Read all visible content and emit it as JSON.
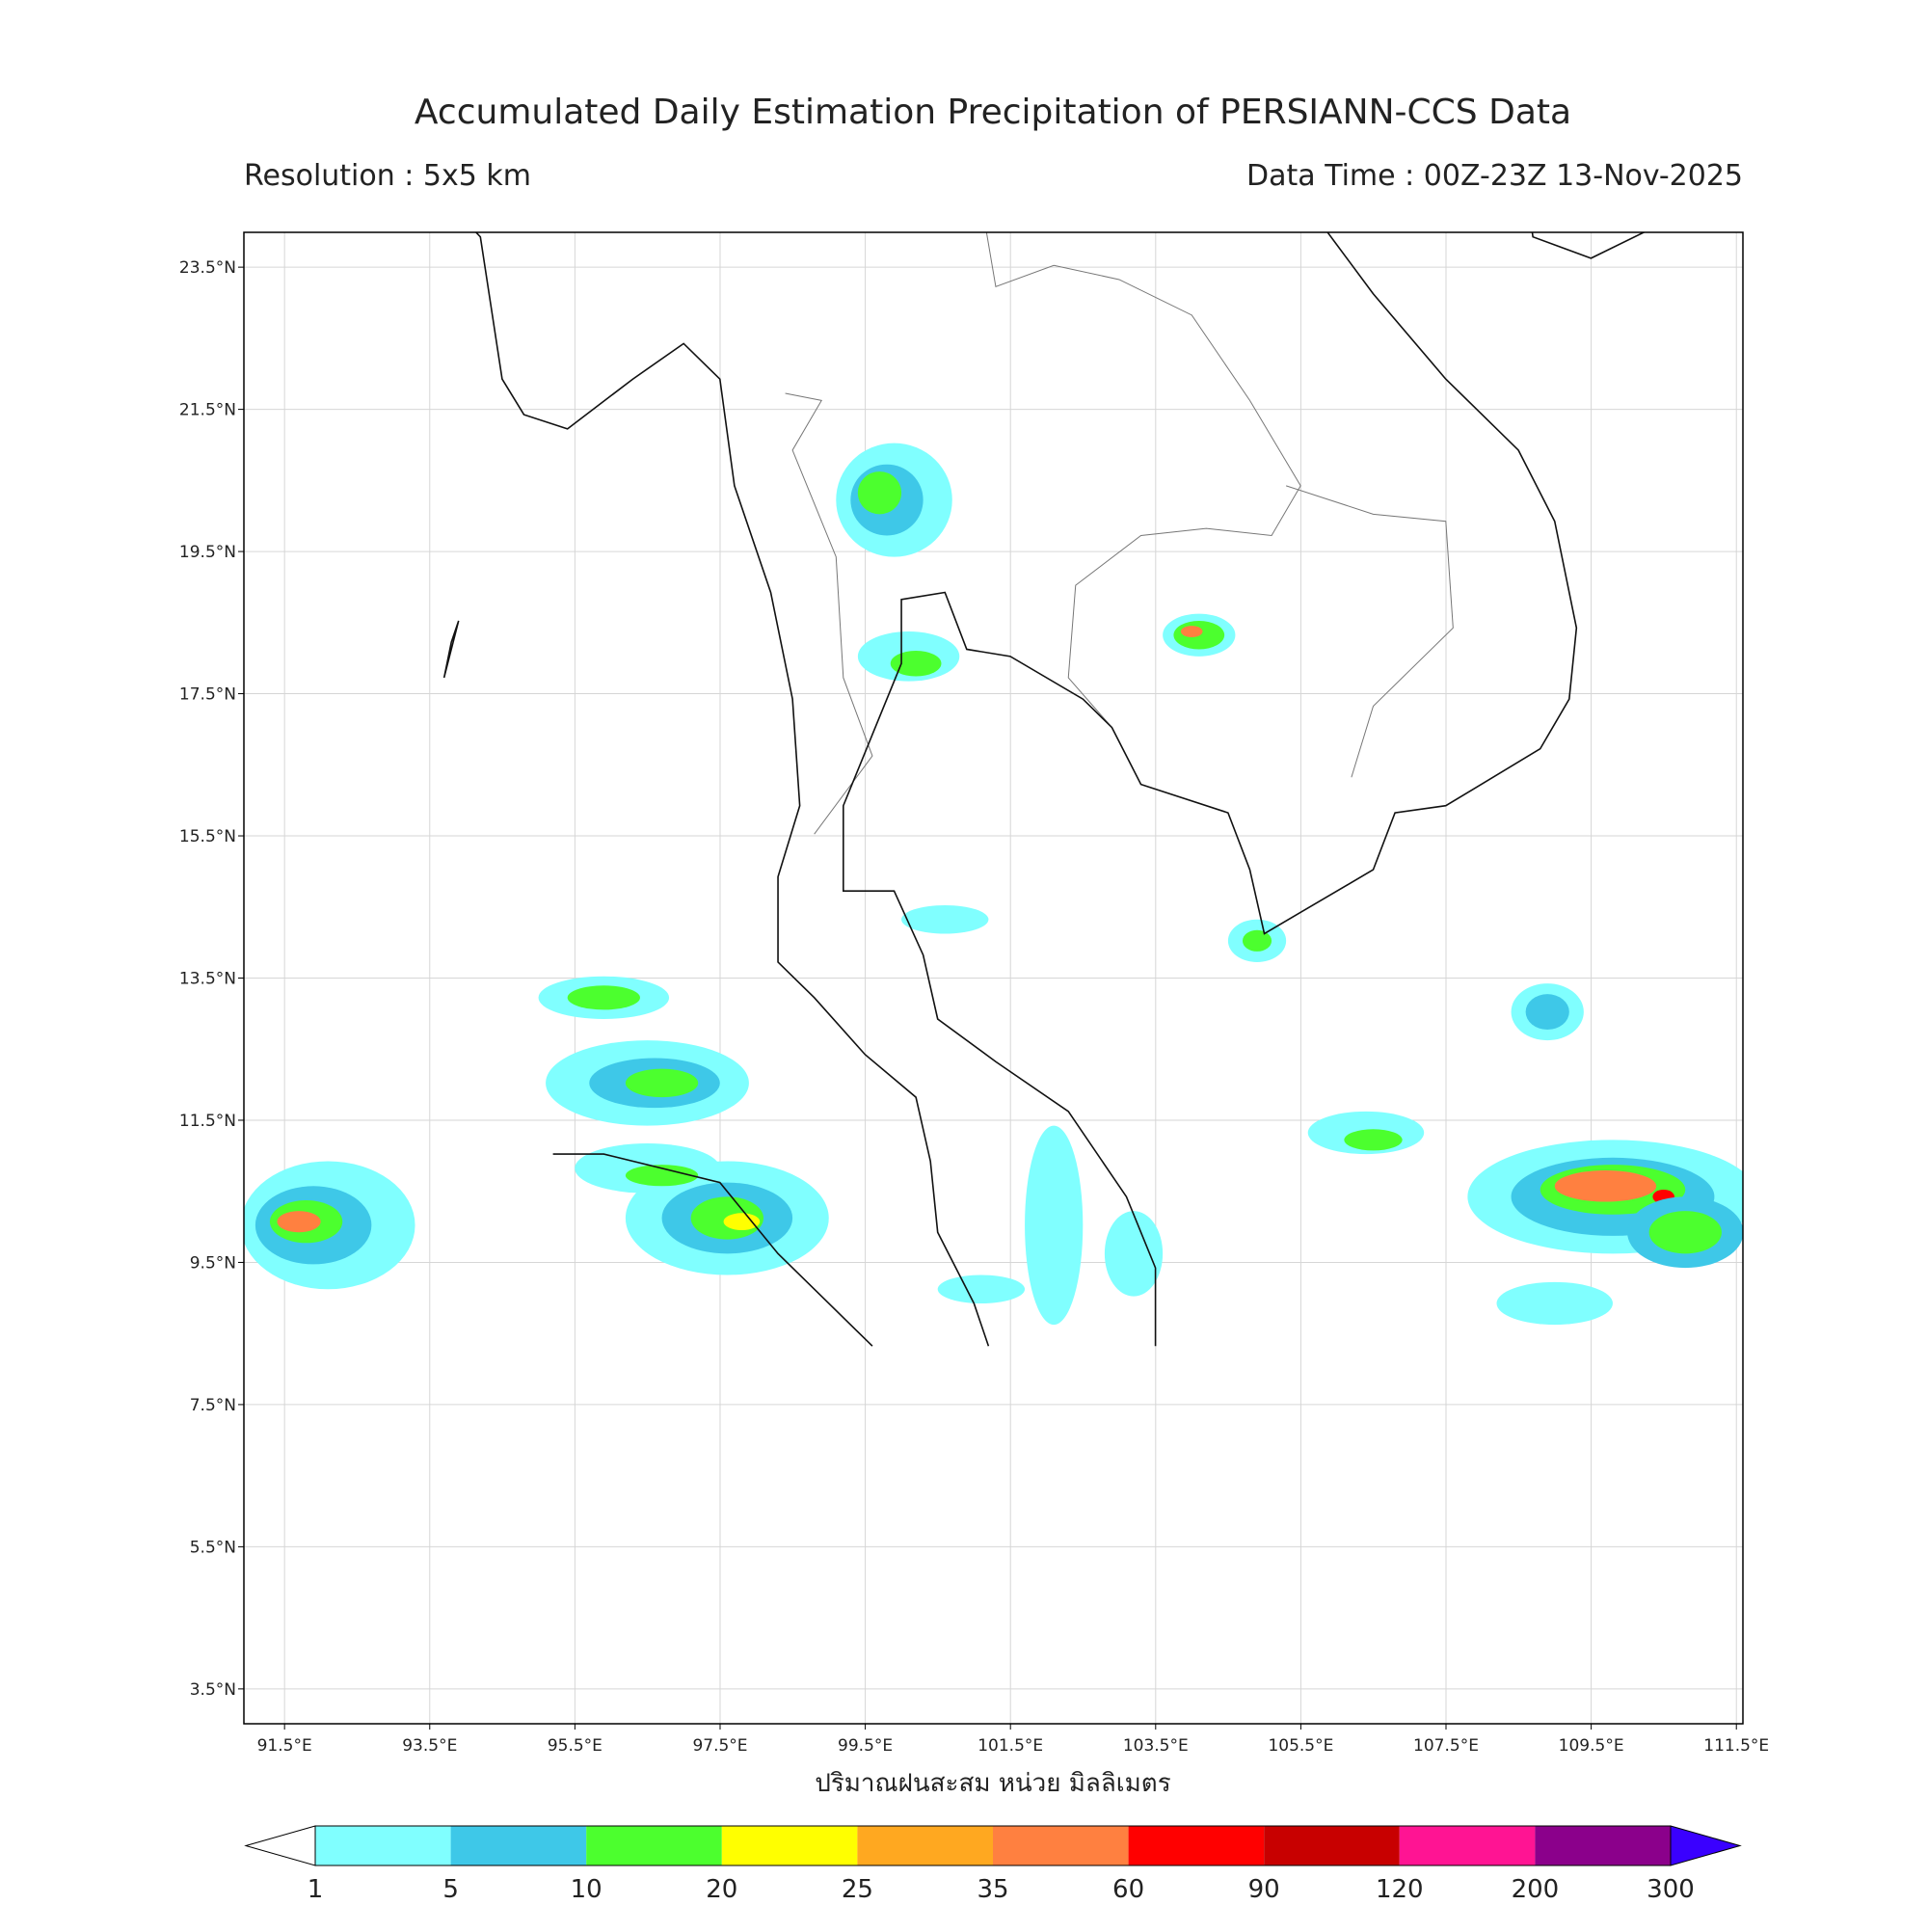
{
  "header": {
    "title": "Accumulated Daily Estimation Precipitation of PERSIANN-CCS Data",
    "resolution": "Resolution : 5x5 km",
    "data_time": "Data Time : 00Z-23Z 13-Nov-2025"
  },
  "map": {
    "xlim": [
      90.94,
      111.59
    ],
    "ylim": [
      3.01,
      23.99
    ],
    "xticks": [
      {
        "value": 91.5,
        "label": "91.5°E"
      },
      {
        "value": 93.5,
        "label": "93.5°E"
      },
      {
        "value": 95.5,
        "label": "95.5°E"
      },
      {
        "value": 97.5,
        "label": "97.5°E"
      },
      {
        "value": 99.5,
        "label": "99.5°E"
      },
      {
        "value": 101.5,
        "label": "101.5°E"
      },
      {
        "value": 103.5,
        "label": "103.5°E"
      },
      {
        "value": 105.5,
        "label": "105.5°E"
      },
      {
        "value": 107.5,
        "label": "107.5°E"
      },
      {
        "value": 109.5,
        "label": "109.5°E"
      },
      {
        "value": 111.5,
        "label": "111.5°E"
      }
    ],
    "yticks": [
      {
        "value": 3.5,
        "label": "3.5°N"
      },
      {
        "value": 5.5,
        "label": "5.5°N"
      },
      {
        "value": 7.5,
        "label": "7.5°N"
      },
      {
        "value": 9.5,
        "label": "9.5°N"
      },
      {
        "value": 11.5,
        "label": "11.5°N"
      },
      {
        "value": 13.5,
        "label": "13.5°N"
      },
      {
        "value": 15.5,
        "label": "15.5°N"
      },
      {
        "value": 17.5,
        "label": "17.5°N"
      },
      {
        "value": 19.5,
        "label": "19.5°N"
      },
      {
        "value": 21.5,
        "label": "21.5°N"
      },
      {
        "value": 23.5,
        "label": "23.5°N"
      }
    ],
    "grid": true,
    "xlabel": "ปริมาณฝนสะสม หน่วย มิลลิเมตร"
  },
  "colorbar": {
    "levels": [
      1,
      5,
      10,
      20,
      25,
      35,
      60,
      90,
      120,
      200,
      300
    ],
    "colors": [
      "#80ffff",
      "#3ec8e8",
      "#4cff2e",
      "#ffff00",
      "#ffa820",
      "#ff8040",
      "#ff0000",
      "#c80000",
      "#ff1493",
      "#8b008b"
    ],
    "under_color": "#ffffff",
    "over_color": "#3a00ff"
  }
}
